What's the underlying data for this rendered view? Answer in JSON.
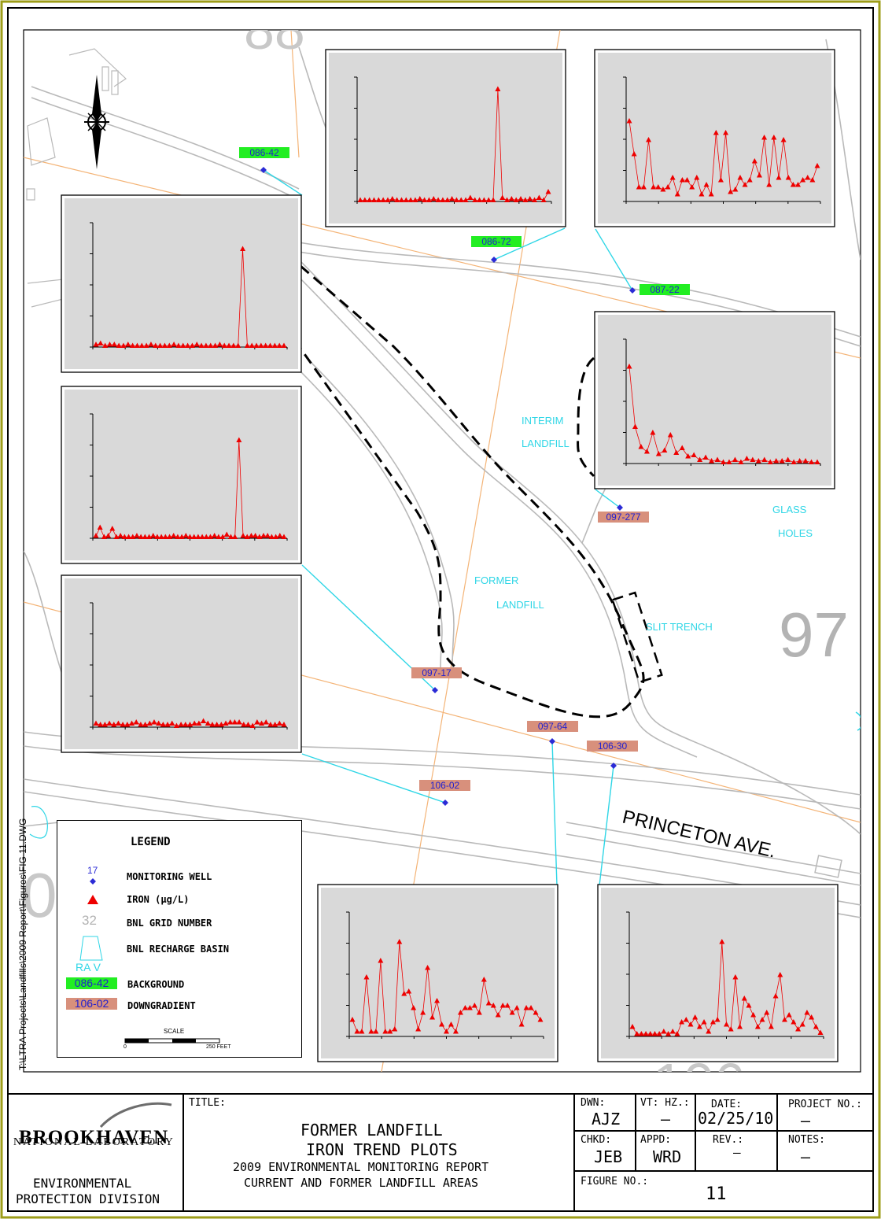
{
  "title_block": {
    "title_label": "TITLE:",
    "title_line1": "FORMER LANDFILL",
    "title_line2": "IRON TREND PLOTS",
    "title_line3": "2009 ENVIRONMENTAL MONITORING REPORT",
    "title_line4": "CURRENT AND FORMER LANDFILL AREAS",
    "org_name": "BROOKHAVEN",
    "org_sub": "NATIONAL LABORATORY",
    "division_line1": "ENVIRONMENTAL",
    "division_line2": "PROTECTION DIVISION",
    "dwn_label": "DWN:",
    "dwn_value": "AJZ",
    "vt_label": "VT: HZ.:",
    "vt_value": "–",
    "date_label": "DATE:",
    "date_value": "02/25/10",
    "project_label": "PROJECT NO.:",
    "project_value": "–",
    "chkd_label": "CHKD:",
    "chkd_value": "JEB",
    "appd_label": "APPD:",
    "appd_value": "WRD",
    "rev_label": "REV.:",
    "rev_value": "–",
    "notes_label": "NOTES:",
    "notes_value": "–",
    "figure_label": "FIGURE NO.:",
    "figure_value": "11"
  },
  "file_path": "T:\\LTRA Projects\\Landfills\\2009 Report\\Figures\\FIG 11.DWG",
  "map": {
    "grid_numbers": {
      "g97": "97",
      "g_left": "0"
    },
    "street": "PRINCETON AVE.",
    "areas": {
      "interim_1": "INTERIM",
      "interim_2": "LANDFILL",
      "glass_1": "GLASS",
      "glass_2": "HOLES",
      "former_1": "FORMER",
      "former_2": "LANDFILL",
      "slit": "SLIT TRENCH"
    },
    "wells": {
      "w1": "086-42",
      "w2": "086-72",
      "w3": "087-22",
      "w4": "097-277",
      "w5": "097-17",
      "w6": "097-64",
      "w7": "106-30",
      "w8": "106-02"
    },
    "colors": {
      "background": "#22ee22",
      "downgradient": "#d8907c",
      "cyan": "#2fd6e6",
      "orange": "#f4b477",
      "road": "#b9b9b9"
    }
  },
  "legend": {
    "title": "LEGEND",
    "well_num": "17",
    "well_label": "MONITORING WELL",
    "iron_label": "IRON (µg/L)",
    "grid_num": "32",
    "grid_label": "BNL GRID NUMBER",
    "basin_label": "BNL RECHARGE BASIN",
    "rav": "RA V",
    "bg_sample": "086-42",
    "bg_label": "BACKGROUND",
    "dg_sample": "106-02",
    "dg_label": "DOWNGRADIENT",
    "scale_label": "SCALE",
    "scale_zero": "0",
    "scale_end": "250 FEET"
  },
  "chart_data": [
    {
      "type": "line",
      "title": "",
      "well": "086-42",
      "xlabel": "",
      "ylabel": "",
      "x": [
        1,
        2,
        3,
        4,
        5,
        6,
        7,
        8,
        9,
        10,
        11,
        12,
        13,
        14,
        15,
        16,
        17,
        18,
        19,
        20,
        21,
        22,
        23,
        24,
        25,
        26,
        27,
        28,
        29,
        30,
        31,
        32,
        33,
        34,
        35,
        36,
        37,
        38,
        39,
        40,
        41,
        42
      ],
      "values": [
        2,
        3,
        1,
        2,
        2,
        1,
        1,
        2,
        1,
        1,
        1,
        1,
        2,
        1,
        1,
        1,
        1,
        2,
        1,
        1,
        1,
        1,
        2,
        1,
        1,
        1,
        1,
        2,
        1,
        1,
        1,
        1,
        83,
        1,
        1,
        1,
        1,
        1,
        1,
        1,
        1,
        1
      ],
      "ylim": [
        0,
        100
      ]
    },
    {
      "type": "line",
      "title": "",
      "well": "086-72",
      "xlabel": "",
      "ylabel": "",
      "x": [
        1,
        2,
        3,
        4,
        5,
        6,
        7,
        8,
        9,
        10,
        11,
        12,
        13,
        14,
        15,
        16,
        17,
        18,
        19,
        20,
        21,
        22,
        23,
        24,
        25,
        26,
        27,
        28,
        29,
        30,
        31,
        32,
        33,
        34,
        35,
        36,
        37,
        38,
        39,
        40,
        41,
        42
      ],
      "values": [
        1,
        1,
        1,
        1,
        1,
        1,
        1,
        2,
        1,
        1,
        1,
        1,
        1,
        2,
        1,
        1,
        2,
        1,
        1,
        1,
        2,
        1,
        1,
        1,
        3,
        1,
        1,
        1,
        1,
        1,
        95,
        3,
        1,
        2,
        1,
        2,
        1,
        2,
        1,
        3,
        1,
        8
      ],
      "ylim": [
        0,
        100
      ]
    },
    {
      "type": "line",
      "title": "",
      "well": "087-22",
      "xlabel": "",
      "ylabel": "",
      "x": [
        1,
        2,
        3,
        4,
        5,
        6,
        7,
        8,
        9,
        10,
        11,
        12,
        13,
        14,
        15,
        16,
        17,
        18,
        19,
        20,
        21,
        22,
        23,
        24,
        25,
        26,
        27,
        28,
        29,
        30,
        31,
        32,
        33,
        34,
        35,
        36,
        37,
        38,
        39,
        40
      ],
      "values": [
        68,
        40,
        12,
        12,
        52,
        12,
        12,
        10,
        12,
        20,
        6,
        18,
        18,
        12,
        20,
        6,
        14,
        6,
        58,
        18,
        58,
        8,
        10,
        20,
        14,
        18,
        34,
        22,
        54,
        14,
        54,
        20,
        52,
        20,
        14,
        14,
        18,
        20,
        18,
        30
      ],
      "ylim": [
        0,
        100
      ]
    },
    {
      "type": "line",
      "title": "",
      "well": "097-277",
      "xlabel": "",
      "ylabel": "",
      "x": [
        1,
        2,
        3,
        4,
        5,
        6,
        7,
        8,
        9,
        10,
        11,
        12,
        13,
        14,
        15,
        16,
        17,
        18,
        19,
        20,
        21,
        22,
        23,
        24,
        25,
        26,
        27,
        28,
        29,
        30,
        31,
        32,
        33
      ],
      "values": [
        82,
        31,
        14,
        10,
        26,
        8,
        11,
        24,
        9,
        13,
        6,
        7,
        3,
        5,
        2,
        3,
        1,
        1,
        3,
        1,
        4,
        3,
        2,
        3,
        1,
        2,
        2,
        3,
        1,
        2,
        2,
        1,
        1
      ],
      "ylim": [
        0,
        100
      ]
    },
    {
      "type": "line",
      "title": "",
      "well": "097-17",
      "xlabel": "",
      "ylabel": "",
      "x": [
        1,
        2,
        3,
        4,
        5,
        6,
        7,
        8,
        9,
        10,
        11,
        12,
        13,
        14,
        15,
        16,
        17,
        18,
        19,
        20,
        21,
        22,
        23,
        24,
        25,
        26,
        27,
        28,
        29,
        30,
        31,
        32,
        33,
        34,
        35,
        36,
        37,
        38,
        39,
        40,
        41,
        42,
        43,
        44,
        45,
        46,
        47
      ],
      "values": [
        2,
        9,
        1,
        2,
        8,
        1,
        2,
        1,
        1,
        1,
        2,
        1,
        1,
        1,
        2,
        1,
        1,
        1,
        1,
        2,
        1,
        1,
        2,
        1,
        1,
        1,
        1,
        1,
        1,
        2,
        1,
        1,
        3,
        1,
        1,
        83,
        2,
        1,
        2,
        2,
        1,
        2,
        2,
        1,
        1,
        2,
        1
      ],
      "ylim": [
        0,
        100
      ]
    },
    {
      "type": "line",
      "title": "",
      "well": "106-02",
      "xlabel": "",
      "ylabel": "",
      "x": [
        1,
        2,
        3,
        4,
        5,
        6,
        7,
        8,
        9,
        10,
        11,
        12,
        13,
        14,
        15,
        16,
        17,
        18,
        19,
        20,
        21,
        22,
        23,
        24,
        25,
        26,
        27,
        28,
        29,
        30,
        31,
        32,
        33,
        34,
        35,
        36,
        37,
        38,
        39,
        40,
        41,
        42,
        43
      ],
      "values": [
        3,
        2,
        2,
        3,
        2,
        3,
        2,
        2,
        3,
        4,
        2,
        2,
        3,
        4,
        3,
        2,
        2,
        3,
        1,
        2,
        2,
        2,
        3,
        3,
        5,
        3,
        2,
        2,
        2,
        3,
        4,
        4,
        4,
        2,
        2,
        1,
        4,
        3,
        4,
        2,
        2,
        3,
        2
      ],
      "ylim": [
        0,
        100
      ]
    },
    {
      "type": "line",
      "title": "",
      "well": "097-64",
      "xlabel": "",
      "ylabel": "",
      "x": [
        1,
        2,
        3,
        4,
        5,
        6,
        7,
        8,
        9,
        10,
        11,
        12,
        13,
        14,
        15,
        16,
        17,
        18,
        19,
        20,
        21,
        22,
        23,
        24,
        25,
        26,
        27,
        28,
        29,
        30,
        31,
        32,
        33,
        34,
        35,
        36,
        37,
        38,
        39,
        40,
        41
      ],
      "values": [
        14,
        4,
        4,
        50,
        4,
        4,
        64,
        4,
        4,
        6,
        80,
        36,
        38,
        24,
        6,
        20,
        58,
        16,
        30,
        10,
        4,
        10,
        4,
        20,
        24,
        24,
        26,
        20,
        48,
        28,
        26,
        18,
        26,
        26,
        20,
        24,
        10,
        24,
        24,
        20,
        14
      ],
      "ylim": [
        0,
        100
      ]
    },
    {
      "type": "line",
      "title": "",
      "well": "106-30",
      "xlabel": "",
      "ylabel": "",
      "x": [
        1,
        2,
        3,
        4,
        5,
        6,
        7,
        8,
        9,
        10,
        11,
        12,
        13,
        14,
        15,
        16,
        17,
        18,
        19,
        20,
        21,
        22,
        23,
        24,
        25,
        26,
        27,
        28,
        29,
        30,
        31,
        32,
        33,
        34,
        35,
        36,
        37,
        38,
        39,
        40,
        41,
        42,
        43
      ],
      "values": [
        8,
        2,
        2,
        2,
        2,
        2,
        2,
        4,
        2,
        4,
        2,
        12,
        14,
        10,
        16,
        8,
        12,
        4,
        12,
        14,
        80,
        10,
        6,
        50,
        8,
        32,
        26,
        18,
        8,
        14,
        20,
        8,
        34,
        52,
        14,
        18,
        12,
        6,
        10,
        20,
        16,
        8,
        3
      ],
      "ylim": [
        0,
        100
      ]
    }
  ]
}
